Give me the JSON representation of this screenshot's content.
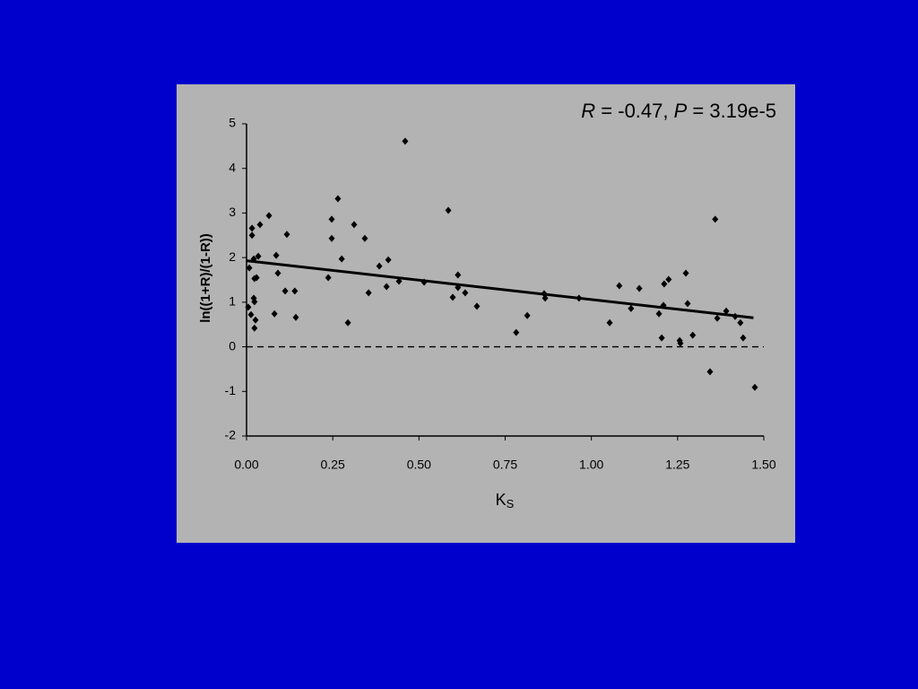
{
  "chart_data": {
    "type": "scatter",
    "annotation": [
      "R",
      " = -0.47, ",
      "P",
      " = 3.19e-5"
    ],
    "xlabel": [
      "K",
      "S"
    ],
    "ylabel": "ln((1+R)/(1-R))",
    "xlim": [
      0,
      1.5
    ],
    "ylim": [
      -2,
      5
    ],
    "xticks": [
      {
        "value": 0,
        "label": "0.00"
      },
      {
        "value": 0.25,
        "label": "0.25"
      },
      {
        "value": 0.5,
        "label": "0.50"
      },
      {
        "value": 0.75,
        "label": "0.75"
      },
      {
        "value": 1,
        "label": "1.00"
      },
      {
        "value": 1.25,
        "label": "1.25"
      },
      {
        "value": 1.5,
        "label": "1.50"
      }
    ],
    "yticks": [
      -2,
      -1,
      0,
      1,
      2,
      3,
      4,
      5
    ],
    "color": "#000000",
    "x": [
      0.005,
      0.008,
      0.013,
      0.016,
      0.016,
      0.021,
      0.023,
      0.023,
      0.021,
      0.023,
      0.026,
      0.029,
      0.034,
      0.039,
      0.065,
      0.081,
      0.086,
      0.091,
      0.112,
      0.117,
      0.14,
      0.143,
      0.237,
      0.247,
      0.247,
      0.265,
      0.276,
      0.294,
      0.312,
      0.343,
      0.354,
      0.385,
      0.406,
      0.411,
      0.442,
      0.46,
      0.515,
      0.585,
      0.598,
      0.613,
      0.613,
      0.634,
      0.668,
      0.782,
      0.814,
      0.863,
      0.866,
      0.964,
      1.053,
      1.081,
      1.115,
      1.139,
      1.196,
      1.204,
      1.209,
      1.211,
      1.224,
      1.256,
      1.258,
      1.274,
      1.279,
      1.294,
      1.344,
      1.359,
      1.365,
      1.391,
      1.417,
      1.432,
      1.44,
      1.474
    ],
    "values": [
      0.89,
      1.77,
      0.72,
      2.66,
      2.5,
      1.97,
      0.42,
      1.53,
      1.09,
      1.01,
      0.6,
      1.55,
      2.03,
      2.74,
      2.94,
      0.74,
      2.05,
      1.65,
      1.25,
      2.52,
      1.25,
      0.66,
      1.55,
      2.86,
      2.43,
      3.32,
      1.97,
      0.54,
      2.74,
      2.43,
      1.21,
      1.81,
      1.35,
      1.95,
      1.47,
      4.61,
      1.45,
      3.06,
      1.11,
      1.61,
      1.33,
      1.21,
      0.91,
      0.32,
      0.7,
      1.19,
      1.09,
      1.09,
      0.54,
      1.37,
      0.86,
      1.31,
      0.74,
      0.2,
      0.93,
      1.41,
      1.51,
      0.14,
      0.08,
      1.65,
      0.97,
      0.26,
      -0.56,
      2.86,
      0.64,
      0.8,
      0.68,
      0.54,
      0.2,
      -0.91
    ],
    "trend_line": {
      "x": [
        0,
        1.47
      ],
      "y": [
        1.93,
        0.65
      ]
    },
    "reference_line": 0
  }
}
